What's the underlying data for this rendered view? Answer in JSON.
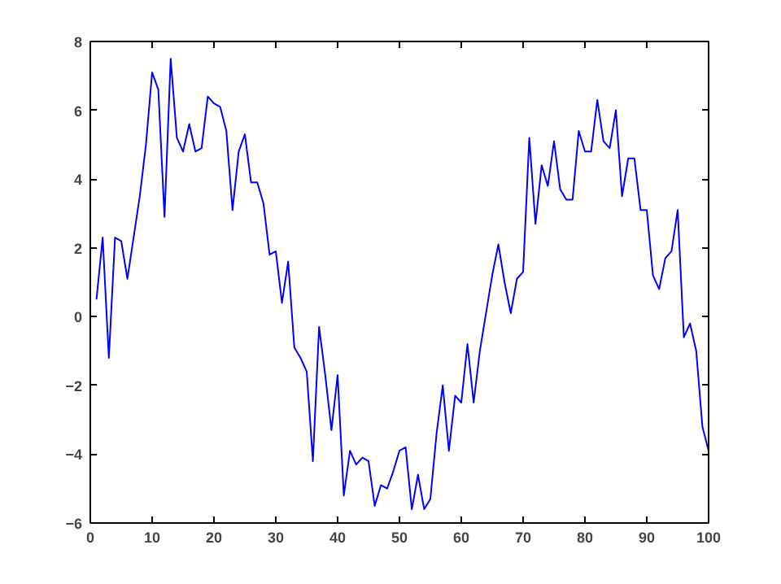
{
  "chart_data": {
    "type": "line",
    "x": [
      1,
      2,
      3,
      4,
      5,
      6,
      7,
      8,
      9,
      10,
      11,
      12,
      13,
      14,
      15,
      16,
      17,
      18,
      19,
      20,
      21,
      22,
      23,
      24,
      25,
      26,
      27,
      28,
      29,
      30,
      31,
      32,
      33,
      34,
      35,
      36,
      37,
      38,
      39,
      40,
      41,
      42,
      43,
      44,
      45,
      46,
      47,
      48,
      49,
      50,
      51,
      52,
      53,
      54,
      55,
      56,
      57,
      58,
      59,
      60,
      61,
      62,
      63,
      64,
      65,
      66,
      67,
      68,
      69,
      70,
      71,
      72,
      73,
      74,
      75,
      76,
      77,
      78,
      79,
      80,
      81,
      82,
      83,
      84,
      85,
      86,
      87,
      88,
      89,
      90,
      91,
      92,
      93,
      94,
      95,
      96,
      97,
      98,
      99,
      100
    ],
    "series": [
      {
        "color": "#0000ff",
        "values": [
          0.5,
          2.3,
          -1.2,
          2.3,
          2.2,
          1.1,
          2.3,
          3.5,
          5.0,
          7.1,
          6.6,
          2.9,
          7.5,
          5.2,
          4.8,
          5.6,
          4.8,
          4.9,
          6.4,
          6.2,
          6.1,
          5.4,
          3.1,
          4.8,
          5.3,
          3.9,
          3.9,
          3.3,
          1.8,
          1.9,
          0.4,
          1.6,
          -0.9,
          -1.2,
          -1.6,
          -4.2,
          -0.3,
          -1.7,
          -3.3,
          -1.7,
          -5.2,
          -3.9,
          -4.3,
          -4.1,
          -4.2,
          -5.5,
          -4.9,
          -5.0,
          -4.5,
          -3.9,
          -3.8,
          -5.6,
          -4.6,
          -5.6,
          -5.3,
          -3.4,
          -2.0,
          -3.9,
          -2.3,
          -2.5,
          -0.8,
          -2.5,
          -1.0,
          0.1,
          1.2,
          2.1,
          1.0,
          0.1,
          1.1,
          1.3,
          5.2,
          2.7,
          4.4,
          3.8,
          5.1,
          3.7,
          3.4,
          3.4,
          5.4,
          4.8,
          4.8,
          6.3,
          5.1,
          4.9,
          6.0,
          3.5,
          4.6,
          4.6,
          3.1,
          3.1,
          1.2,
          0.8,
          1.7,
          1.9,
          3.1,
          -0.6,
          -0.2,
          -1.0,
          -3.2,
          -3.9
        ]
      }
    ],
    "xlim": [
      0,
      100
    ],
    "xticks": [
      0,
      10,
      20,
      30,
      40,
      50,
      60,
      70,
      80,
      90,
      100
    ],
    "ylim": [
      -6,
      8
    ],
    "yticks": [
      -6,
      -4,
      -2,
      0,
      2,
      4,
      6,
      8
    ],
    "line_style": "solid"
  }
}
